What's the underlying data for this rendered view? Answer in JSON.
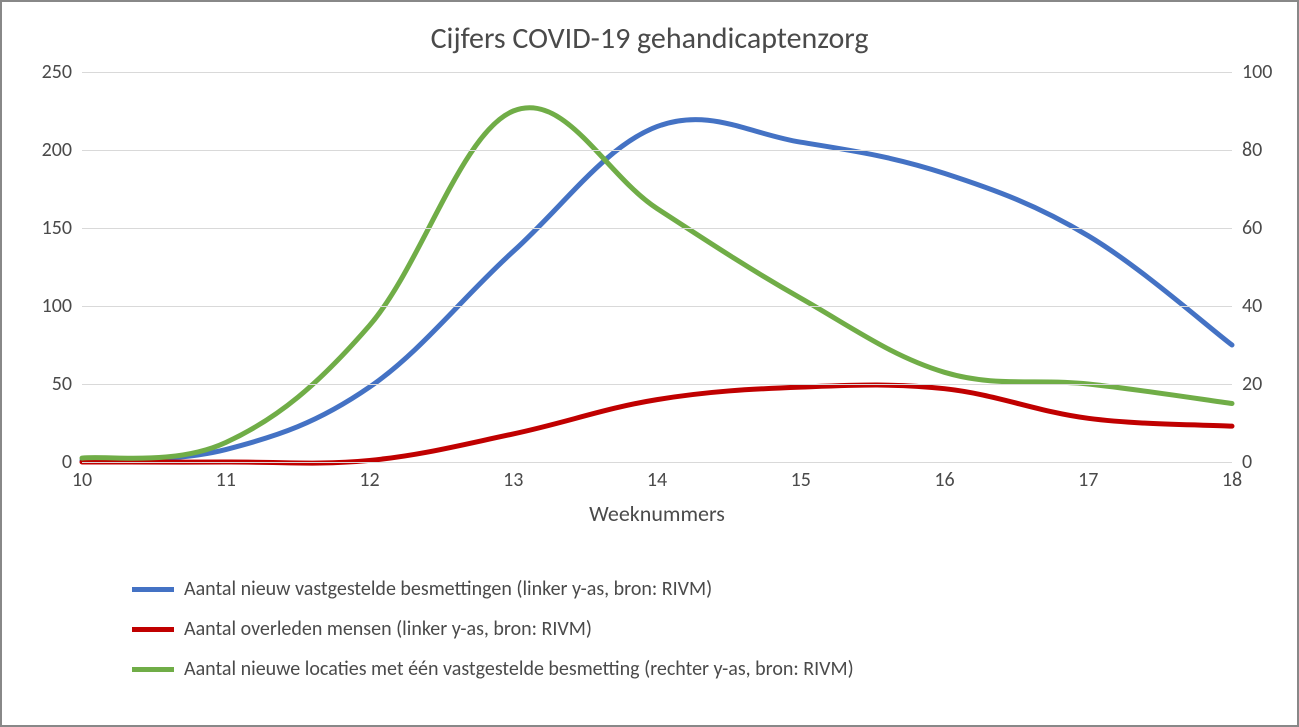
{
  "chart": {
    "type": "line",
    "title": "Cijfers COVID-19 gehandicaptenzorg",
    "title_fontsize": 30,
    "xaxis_title": "Weeknummers",
    "xaxis_title_fontsize": 22,
    "label_fontsize": 20,
    "background_color": "#ffffff",
    "border_color": "#888888",
    "grid_color": "#d9d9d9",
    "text_color": "#4a4a4a",
    "line_width": 5,
    "x_categories": [
      "10",
      "11",
      "12",
      "13",
      "14",
      "15",
      "16",
      "17",
      "18"
    ],
    "y_left": {
      "min": 0,
      "max": 250,
      "step": 50
    },
    "y_right": {
      "min": 0,
      "max": 100,
      "step": 20
    },
    "series": [
      {
        "id": "besmettingen",
        "label": "Aantal nieuw vastgestelde besmettingen  (linker y-as, bron: RIVM)",
        "color": "#4472c4",
        "axis": "left",
        "values": [
          1,
          8,
          48,
          135,
          215,
          205,
          185,
          145,
          75
        ]
      },
      {
        "id": "overleden",
        "label": "Aantal overleden mensen  (linker y-as, bron: RIVM)",
        "color": "#c00000",
        "axis": "left",
        "values": [
          0,
          0,
          1,
          18,
          40,
          48,
          47,
          28,
          23
        ]
      },
      {
        "id": "locaties",
        "label": "Aantal nieuwe locaties met één vastgestelde besmetting  (rechter y-as, bron: RIVM)",
        "color": "#70ad47",
        "axis": "right",
        "values": [
          1,
          5,
          35,
          90,
          65,
          42,
          23,
          20,
          15
        ]
      }
    ]
  }
}
